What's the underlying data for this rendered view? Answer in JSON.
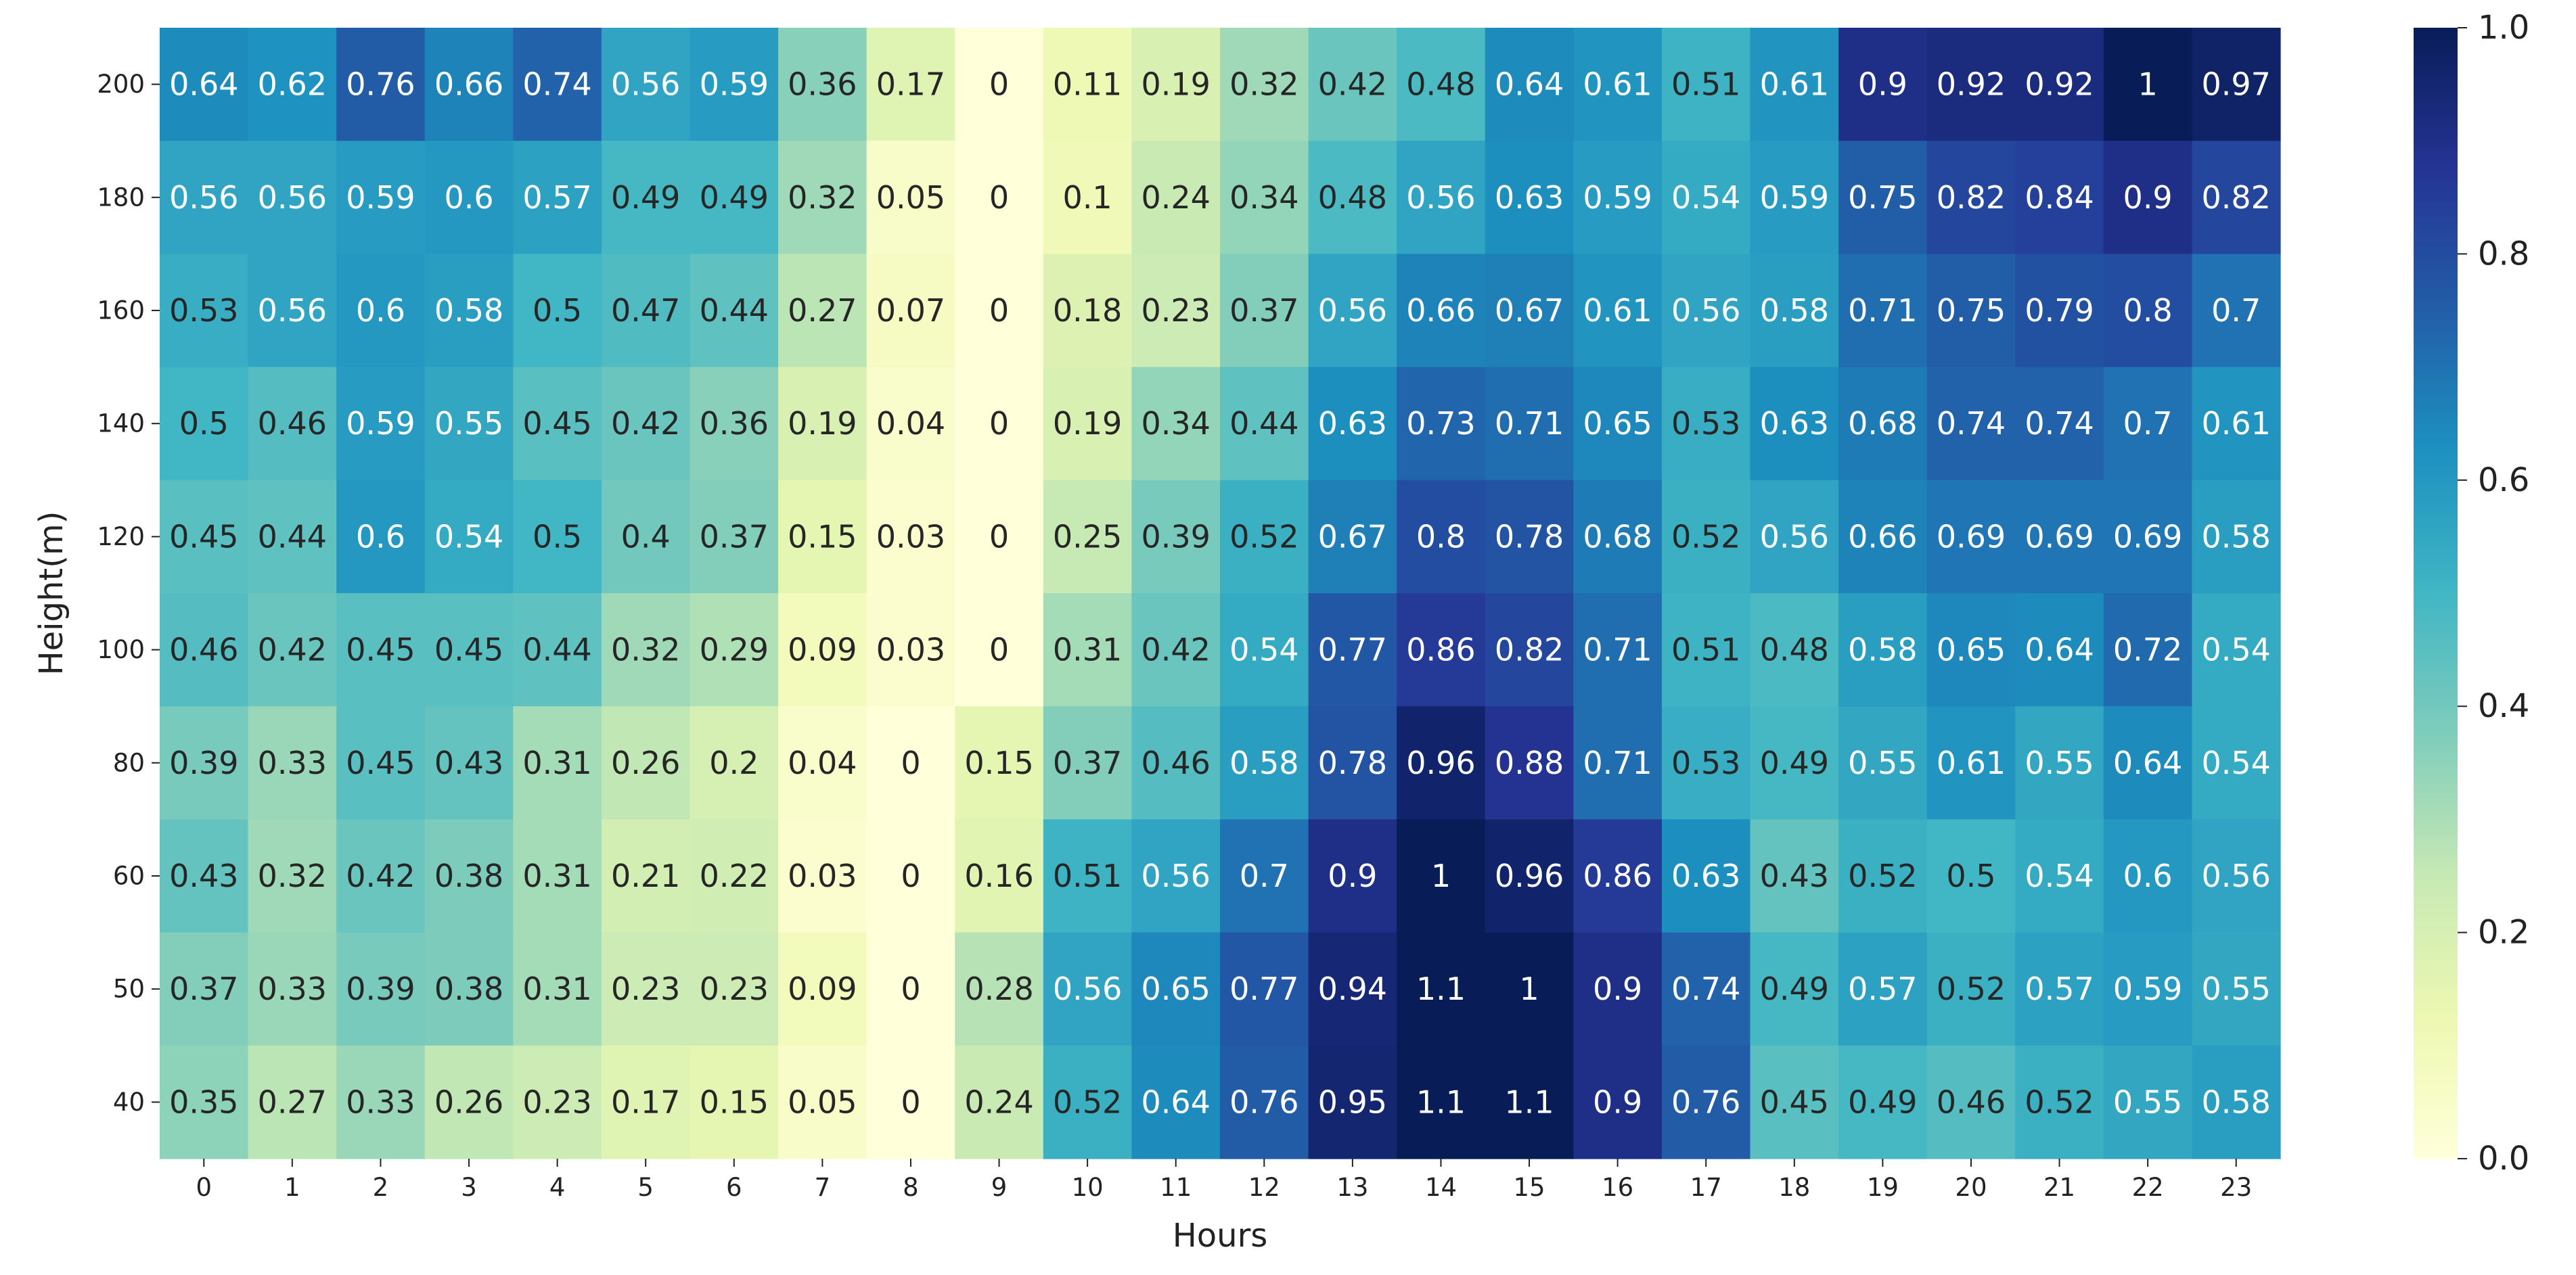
{
  "chart_data": {
    "type": "heatmap",
    "xlabel": "Hours",
    "ylabel": "Height(m)",
    "x_categories": [
      "0",
      "1",
      "2",
      "3",
      "4",
      "5",
      "6",
      "7",
      "8",
      "9",
      "10",
      "11",
      "12",
      "13",
      "14",
      "15",
      "16",
      "17",
      "18",
      "19",
      "20",
      "21",
      "22",
      "23"
    ],
    "y_categories": [
      "200",
      "180",
      "160",
      "140",
      "120",
      "100",
      "80",
      "60",
      "50",
      "40"
    ],
    "values": [
      [
        0.64,
        0.62,
        0.76,
        0.66,
        0.74,
        0.56,
        0.59,
        0.36,
        0.17,
        0,
        0.11,
        0.19,
        0.32,
        0.42,
        0.48,
        0.64,
        0.61,
        0.51,
        0.61,
        0.9,
        0.92,
        0.92,
        1,
        0.97
      ],
      [
        0.56,
        0.56,
        0.59,
        0.6,
        0.57,
        0.49,
        0.49,
        0.32,
        0.05,
        0,
        0.1,
        0.24,
        0.34,
        0.48,
        0.56,
        0.63,
        0.59,
        0.54,
        0.59,
        0.75,
        0.82,
        0.84,
        0.9,
        0.82
      ],
      [
        0.53,
        0.56,
        0.6,
        0.58,
        0.5,
        0.47,
        0.44,
        0.27,
        0.07,
        0,
        0.18,
        0.23,
        0.37,
        0.56,
        0.66,
        0.67,
        0.61,
        0.56,
        0.58,
        0.71,
        0.75,
        0.79,
        0.8,
        0.7
      ],
      [
        0.5,
        0.46,
        0.59,
        0.55,
        0.45,
        0.42,
        0.36,
        0.19,
        0.04,
        0,
        0.19,
        0.34,
        0.44,
        0.63,
        0.73,
        0.71,
        0.65,
        0.53,
        0.63,
        0.68,
        0.74,
        0.74,
        0.7,
        0.61
      ],
      [
        0.45,
        0.44,
        0.6,
        0.54,
        0.5,
        0.4,
        0.37,
        0.15,
        0.03,
        0,
        0.25,
        0.39,
        0.52,
        0.67,
        0.8,
        0.78,
        0.68,
        0.52,
        0.56,
        0.66,
        0.69,
        0.69,
        0.69,
        0.58
      ],
      [
        0.46,
        0.42,
        0.45,
        0.45,
        0.44,
        0.32,
        0.29,
        0.09,
        0.03,
        0,
        0.31,
        0.42,
        0.54,
        0.77,
        0.86,
        0.82,
        0.71,
        0.51,
        0.48,
        0.58,
        0.65,
        0.64,
        0.72,
        0.54
      ],
      [
        0.39,
        0.33,
        0.45,
        0.43,
        0.31,
        0.26,
        0.2,
        0.04,
        0,
        0.15,
        0.37,
        0.46,
        0.58,
        0.78,
        0.96,
        0.88,
        0.71,
        0.53,
        0.49,
        0.55,
        0.61,
        0.55,
        0.64,
        0.54
      ],
      [
        0.43,
        0.32,
        0.42,
        0.38,
        0.31,
        0.21,
        0.22,
        0.03,
        0,
        0.16,
        0.51,
        0.56,
        0.7,
        0.9,
        1,
        0.96,
        0.86,
        0.63,
        0.43,
        0.52,
        0.5,
        0.54,
        0.6,
        0.56
      ],
      [
        0.37,
        0.33,
        0.39,
        0.38,
        0.31,
        0.23,
        0.23,
        0.09,
        0,
        0.28,
        0.56,
        0.65,
        0.77,
        0.94,
        1.1,
        1,
        0.9,
        0.74,
        0.49,
        0.57,
        0.52,
        0.57,
        0.59,
        0.55
      ],
      [
        0.35,
        0.27,
        0.33,
        0.26,
        0.23,
        0.17,
        0.15,
        0.05,
        0,
        0.24,
        0.52,
        0.64,
        0.76,
        0.95,
        1.1,
        1.1,
        0.9,
        0.76,
        0.45,
        0.49,
        0.46,
        0.52,
        0.55,
        0.58
      ]
    ],
    "colorbar": {
      "colormap": "YlGnBu",
      "range": [
        0.0,
        1.0
      ],
      "ticks": [
        "0.0",
        "0.2",
        "0.4",
        "0.6",
        "0.8",
        "1.0"
      ]
    },
    "colors": {
      "text_light": "#ffffff",
      "text_dark": "#262626",
      "colormap_stops": [
        "#ffffd9",
        "#edf8b1",
        "#c7e9b4",
        "#7fcdbb",
        "#41b6c4",
        "#1d91c0",
        "#225ea8",
        "#253494",
        "#081d58"
      ]
    }
  }
}
